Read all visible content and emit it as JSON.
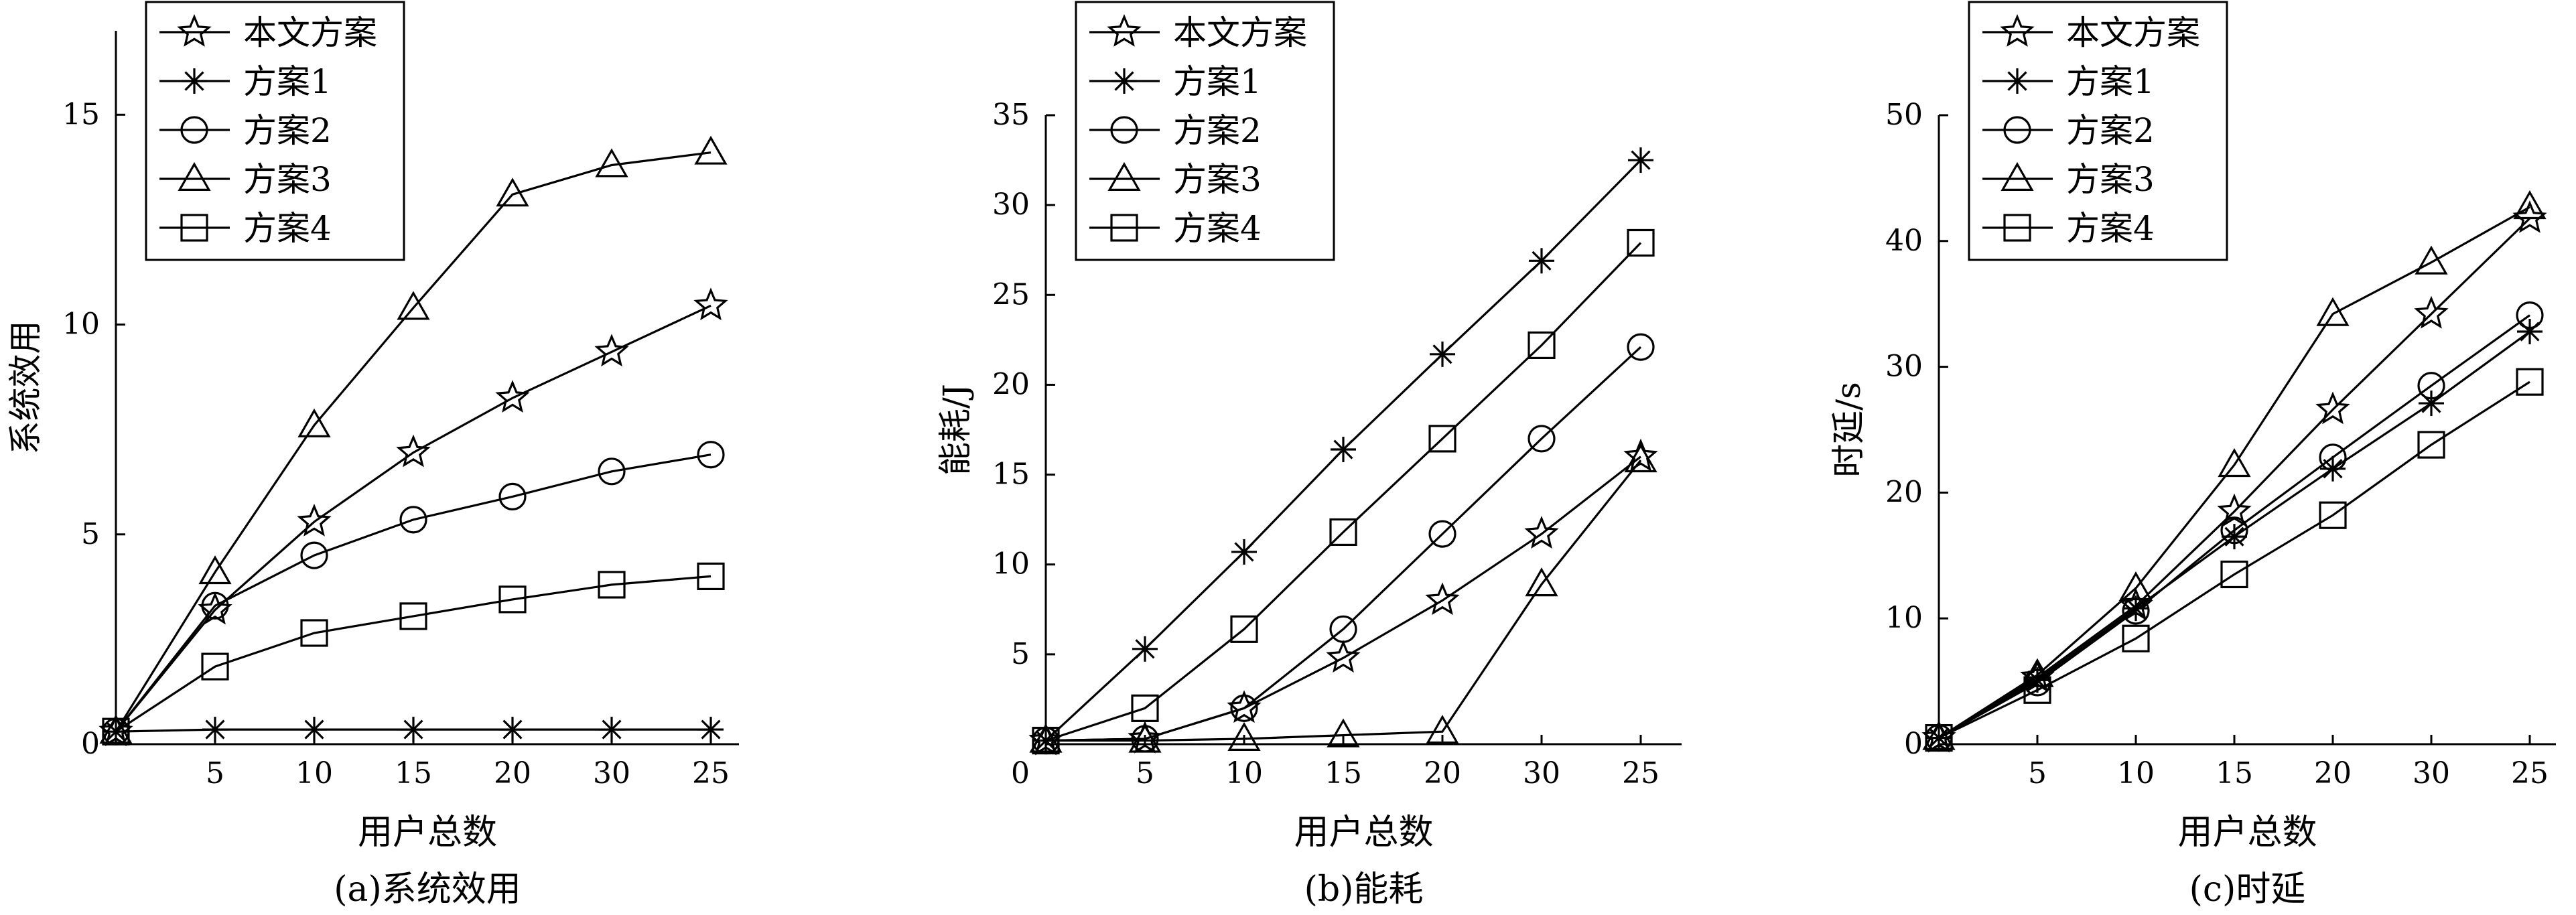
{
  "chart_data": [
    {
      "type": "line",
      "categories": [
        "",
        "5",
        "10",
        "15",
        "20",
        "30",
        "25"
      ],
      "xlabel": "用户总数",
      "ylabel": "系统效用",
      "caption": "(a)系统效用",
      "ylim": [
        0,
        17
      ],
      "yticks": [
        0,
        5,
        10,
        15
      ],
      "legend_position": "top-left",
      "series": [
        {
          "name": "本文方案",
          "marker": "star",
          "values": [
            0.3,
            3.2,
            5.3,
            6.95,
            8.25,
            9.35,
            10.45
          ]
        },
        {
          "name": "方案1",
          "marker": "asterisk",
          "values": [
            0.3,
            0.35,
            0.35,
            0.35,
            0.35,
            0.35,
            0.35
          ]
        },
        {
          "name": "方案2",
          "marker": "circle",
          "values": [
            0.3,
            3.3,
            4.5,
            5.35,
            5.9,
            6.5,
            6.9
          ]
        },
        {
          "name": "方案3",
          "marker": "triangle",
          "values": [
            0.3,
            4.1,
            7.6,
            10.4,
            13.1,
            13.8,
            14.1
          ]
        },
        {
          "name": "方案4",
          "marker": "square",
          "values": [
            0.3,
            1.85,
            2.65,
            3.05,
            3.45,
            3.8,
            4.0
          ]
        }
      ]
    },
    {
      "type": "line",
      "categories": [
        "",
        "5",
        "10",
        "15",
        "20",
        "30",
        "25"
      ],
      "xlabel": "用户总数",
      "ylabel": "能耗/J",
      "caption": "(b)能耗",
      "ylim": [
        0,
        35
      ],
      "yticks": [
        5,
        10,
        15,
        20,
        25,
        30,
        35
      ],
      "legend_position": "top-left",
      "series": [
        {
          "name": "本文方案",
          "marker": "star",
          "values": [
            0.2,
            0.3,
            2.0,
            4.8,
            8.0,
            11.7,
            16.0
          ]
        },
        {
          "name": "方案1",
          "marker": "asterisk",
          "values": [
            0.2,
            5.3,
            10.7,
            16.4,
            21.7,
            26.9,
            32.5
          ]
        },
        {
          "name": "方案2",
          "marker": "circle",
          "values": [
            0.2,
            0.3,
            2.0,
            6.4,
            11.7,
            17.0,
            22.1
          ]
        },
        {
          "name": "方案3",
          "marker": "triangle",
          "values": [
            0.2,
            0.2,
            0.3,
            0.5,
            0.7,
            8.9,
            15.8
          ]
        },
        {
          "name": "方案4",
          "marker": "square",
          "values": [
            0.2,
            2.0,
            6.4,
            11.8,
            17.0,
            22.2,
            27.9
          ]
        }
      ]
    },
    {
      "type": "line",
      "categories": [
        "",
        "5",
        "10",
        "15",
        "20",
        "30",
        "25"
      ],
      "xlabel": "用户总数",
      "ylabel": "时延/s",
      "caption": "(c)时延",
      "ylim": [
        0,
        50
      ],
      "yticks": [
        0,
        10,
        20,
        30,
        40,
        50
      ],
      "legend_position": "top-left",
      "series": [
        {
          "name": "本文方案",
          "marker": "star",
          "values": [
            0.5,
            5.3,
            11.0,
            18.5,
            26.6,
            34.2,
            41.8
          ]
        },
        {
          "name": "方案1",
          "marker": "asterisk",
          "values": [
            0.5,
            5.1,
            10.8,
            16.5,
            21.9,
            27.1,
            32.8
          ]
        },
        {
          "name": "方案2",
          "marker": "circle",
          "values": [
            0.5,
            4.9,
            10.6,
            17.0,
            22.8,
            28.5,
            34.1
          ]
        },
        {
          "name": "方案3",
          "marker": "triangle",
          "values": [
            0.5,
            5.5,
            12.4,
            22.2,
            34.2,
            38.3,
            42.7
          ]
        },
        {
          "name": "方案4",
          "marker": "square",
          "values": [
            0.5,
            4.3,
            8.4,
            13.5,
            18.2,
            23.8,
            28.8
          ]
        }
      ]
    }
  ]
}
